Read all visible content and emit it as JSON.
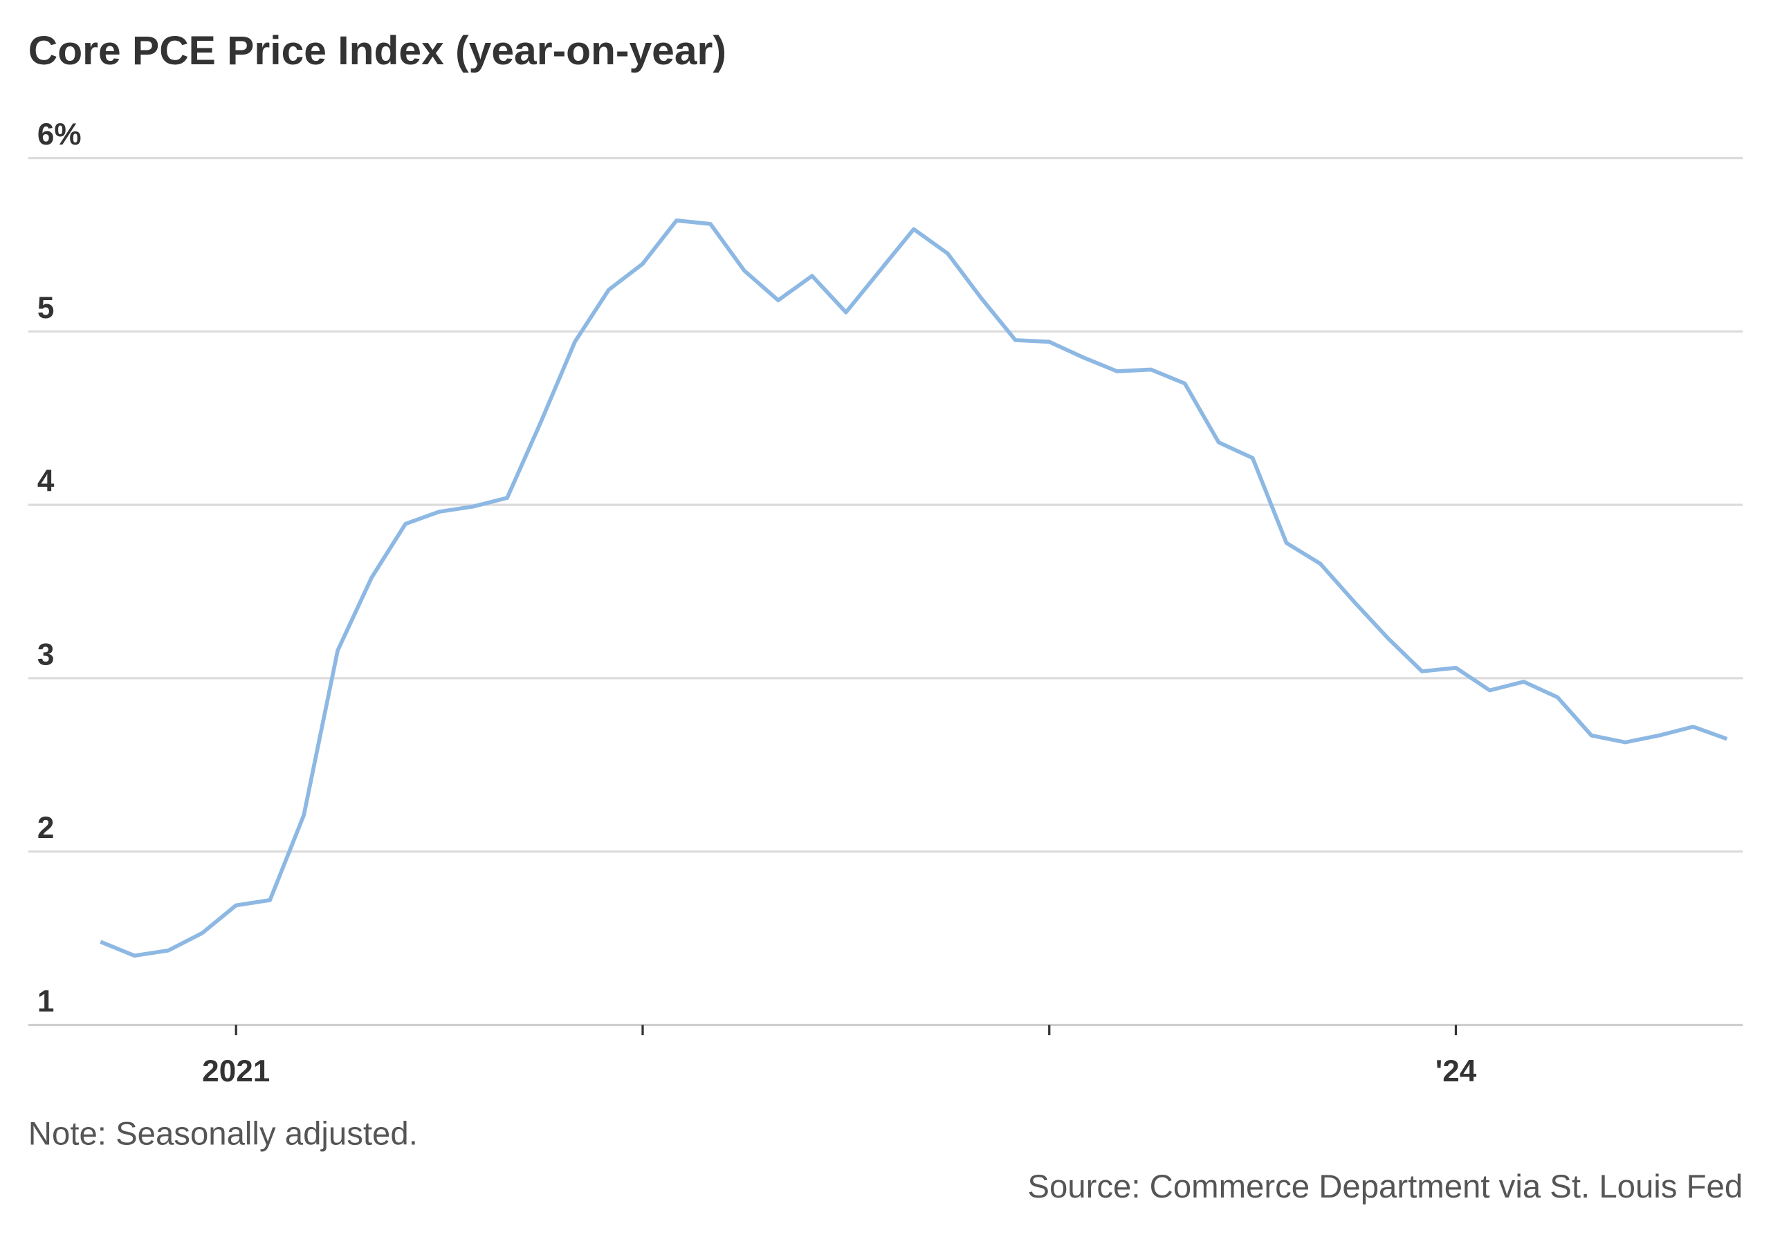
{
  "chart_data": {
    "type": "line",
    "title": "Core PCE Price Index (year-on-year)",
    "note": "Note: Seasonally adjusted.",
    "source": "Source: Commerce Department via St. Louis Fed",
    "ylim": [
      1,
      6
    ],
    "y_ticks": [
      {
        "value": 6,
        "label": "6%"
      },
      {
        "value": 5,
        "label": "5"
      },
      {
        "value": 4,
        "label": "4"
      },
      {
        "value": 3,
        "label": "3"
      },
      {
        "value": 2,
        "label": "2"
      },
      {
        "value": 1,
        "label": "1"
      }
    ],
    "x_ticks": [
      {
        "value": "2021-01",
        "label": "2021"
      },
      {
        "value": "2022-01",
        "label": ""
      },
      {
        "value": "2023-01",
        "label": ""
      },
      {
        "value": "2024-01",
        "label": "'24"
      }
    ],
    "grid": true,
    "line_color": "#8db8e3",
    "x": [
      "2020-09",
      "2020-10",
      "2020-11",
      "2020-12",
      "2021-01",
      "2021-02",
      "2021-03",
      "2021-04",
      "2021-05",
      "2021-06",
      "2021-07",
      "2021-08",
      "2021-09",
      "2021-10",
      "2021-11",
      "2021-12",
      "2022-01",
      "2022-02",
      "2022-03",
      "2022-04",
      "2022-05",
      "2022-06",
      "2022-07",
      "2022-08",
      "2022-09",
      "2022-10",
      "2022-11",
      "2022-12",
      "2023-01",
      "2023-02",
      "2023-03",
      "2023-04",
      "2023-05",
      "2023-06",
      "2023-07",
      "2023-08",
      "2023-09",
      "2023-10",
      "2023-11",
      "2023-12",
      "2024-01",
      "2024-02",
      "2024-03",
      "2024-04",
      "2024-05",
      "2024-06",
      "2024-07",
      "2024-08",
      "2024-09"
    ],
    "series": [
      {
        "values": [
          1.48,
          1.4,
          1.43,
          1.53,
          1.69,
          1.72,
          2.21,
          3.16,
          3.58,
          3.89,
          3.96,
          3.99,
          4.04,
          4.48,
          4.94,
          5.24,
          5.39,
          5.64,
          5.62,
          5.35,
          5.18,
          5.32,
          5.11,
          5.35,
          5.59,
          5.45,
          5.19,
          4.95,
          4.94,
          4.85,
          4.77,
          4.78,
          4.7,
          4.36,
          4.27,
          3.78,
          3.66,
          3.44,
          3.23,
          3.04,
          3.06,
          2.93,
          2.98,
          2.89,
          2.67,
          2.63,
          2.67,
          2.72,
          2.65
        ]
      }
    ]
  }
}
